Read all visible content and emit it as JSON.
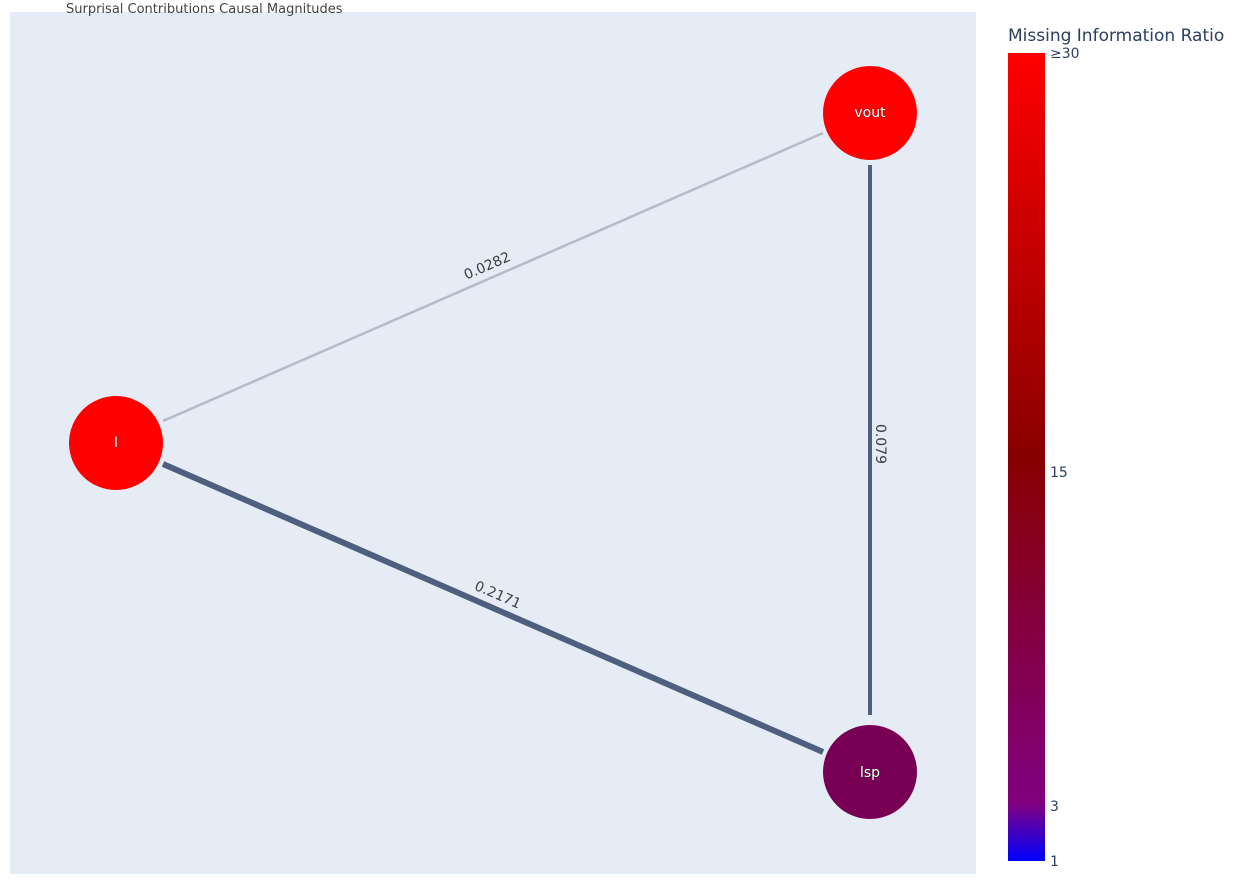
{
  "title": "Surprisal Contributions Causal Magnitudes",
  "colors": {
    "plot_background": "#e5ecf6",
    "edge_weak": "#b4bac8",
    "edge_strong": "#4f5f7d",
    "node_high": "#ff0000",
    "node_mid": "#770055"
  },
  "nodes": [
    {
      "id": "I",
      "label": "I",
      "color": "#ff0000"
    },
    {
      "id": "vout",
      "label": "vout",
      "color": "#ff0000"
    },
    {
      "id": "lsp",
      "label": "lsp",
      "color": "#770055"
    }
  ],
  "edges": [
    {
      "source": "I",
      "target": "vout",
      "label": "0.0282",
      "color": "#b4bac8"
    },
    {
      "source": "vout",
      "target": "lsp",
      "label": "0.079",
      "color": "#4f5f7d"
    },
    {
      "source": "I",
      "target": "lsp",
      "label": "0.2171",
      "color": "#4f5f7d"
    }
  ],
  "colorbar": {
    "title": "Missing Information Ratio",
    "ticks": [
      {
        "value": 30,
        "label": "≥30"
      },
      {
        "value": 15,
        "label": "15"
      },
      {
        "value": 3,
        "label": "3"
      },
      {
        "value": 1,
        "label": "1"
      }
    ],
    "stops": [
      {
        "offset": 0,
        "color": "#ff0000"
      },
      {
        "offset": 0.5,
        "color": "#880000"
      },
      {
        "offset": 0.93,
        "color": "#800080"
      },
      {
        "offset": 1,
        "color": "#0000ff"
      }
    ]
  }
}
